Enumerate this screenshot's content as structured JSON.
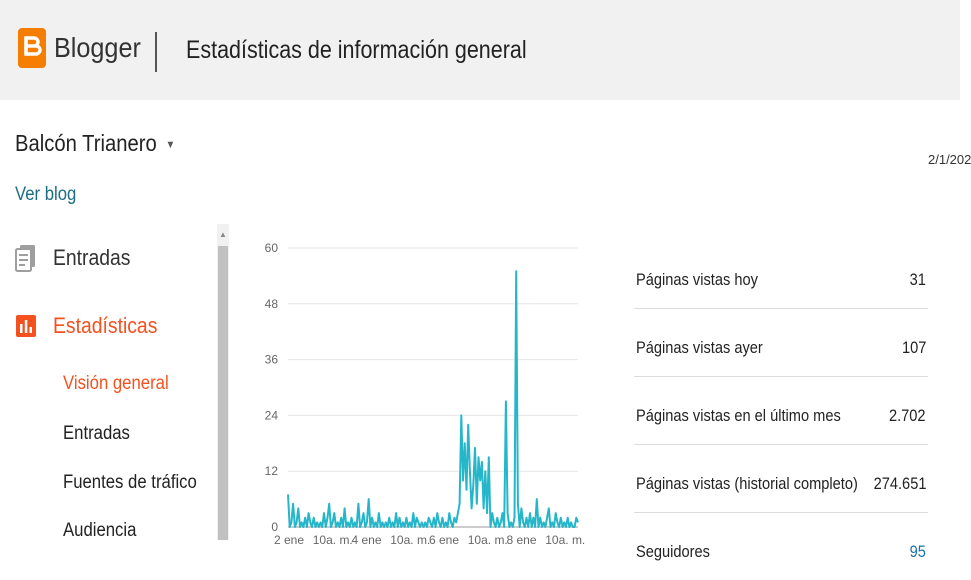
{
  "header": {
    "brand": "Blogger",
    "page_title": "Estadísticas de información general"
  },
  "blog": {
    "name": "Balcón Trianero",
    "view_link": "Ver blog",
    "date": "2/1/202"
  },
  "nav": {
    "entradas": "Entradas",
    "estadisticas": "Estadísticas",
    "sub_items": [
      "Visión general",
      "Entradas",
      "Fuentes de tráfico",
      "Audiencia"
    ]
  },
  "colors": {
    "brand": "#f57d00",
    "active": "#f4511e",
    "series": "#26b6c9"
  },
  "stats": [
    {
      "label": "Páginas vistas hoy",
      "value": "31"
    },
    {
      "label": "Páginas vistas ayer",
      "value": "107"
    },
    {
      "label": "Páginas vistas en el último mes",
      "value": "2.702"
    },
    {
      "label": "Páginas vistas (historial completo)",
      "value": "274.651"
    },
    {
      "label": "Seguidores",
      "value": "95"
    }
  ],
  "chart_data": {
    "type": "line",
    "ylim": [
      0,
      60
    ],
    "yticks": [
      0,
      12,
      24,
      36,
      48,
      60
    ],
    "xticks": [
      "2 ene",
      "10a. m.",
      "4 ene",
      "10a. m.",
      "6 ene",
      "10a. m.",
      "8 ene",
      "10a. m."
    ],
    "grid": true,
    "series": [
      {
        "values": [
          7,
          0,
          1,
          5,
          0,
          1,
          4,
          0,
          1,
          0,
          2,
          0,
          3,
          1,
          0,
          2,
          0,
          1,
          0,
          1,
          0,
          3,
          0,
          2,
          5,
          0,
          1,
          3,
          0,
          1,
          0,
          2,
          0,
          4,
          0,
          1,
          0,
          2,
          0,
          1,
          0,
          5,
          0,
          1,
          3,
          0,
          1,
          6,
          0,
          2,
          0,
          1,
          0,
          3,
          0,
          1,
          0,
          1,
          0,
          2,
          0,
          1,
          0,
          3,
          0,
          2,
          0,
          1,
          0,
          2,
          0,
          1,
          0,
          3,
          0,
          2,
          1,
          0,
          1,
          0,
          1,
          0,
          2,
          1,
          0,
          2,
          0,
          3,
          1,
          0,
          2,
          0,
          1,
          0,
          3,
          1,
          0,
          2,
          1,
          3,
          5,
          24,
          10,
          18,
          8,
          22,
          12,
          4,
          9,
          17,
          5,
          15,
          10,
          14,
          4,
          12,
          3,
          15,
          0,
          3,
          1,
          0,
          2,
          0,
          1,
          3,
          0,
          27,
          3,
          0,
          1,
          0,
          2,
          55,
          5,
          0,
          4,
          1,
          0,
          2,
          0,
          3,
          0,
          2,
          0,
          6,
          0,
          2,
          0,
          1,
          0,
          2,
          4,
          0,
          1,
          0,
          3,
          1,
          0,
          2,
          0,
          1,
          0,
          2,
          0,
          1,
          0,
          0,
          2,
          1
        ]
      }
    ]
  }
}
